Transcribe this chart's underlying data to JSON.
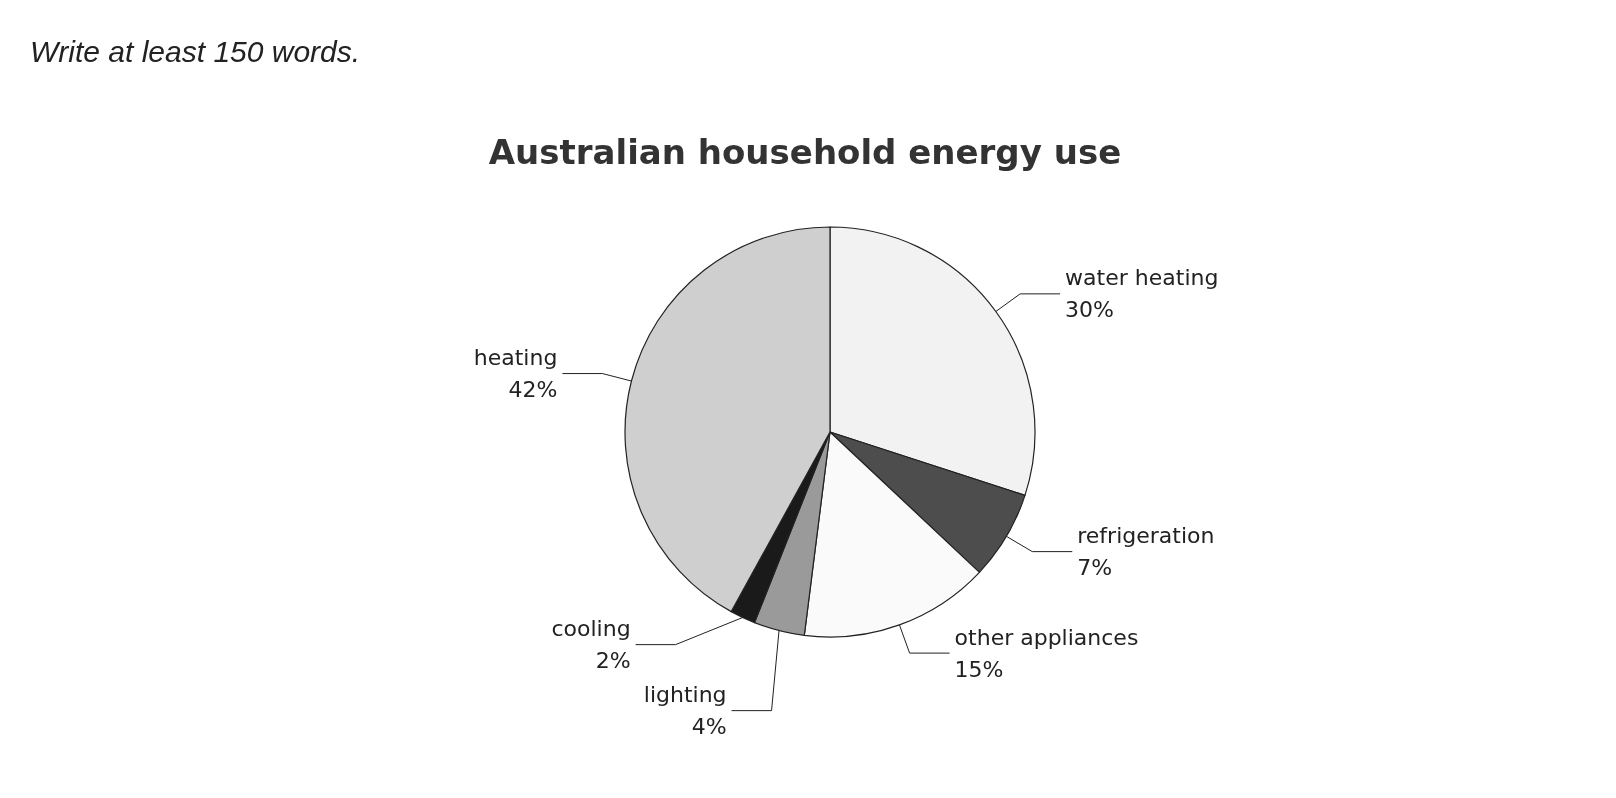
{
  "chart_data": {
    "type": "pie",
    "title": "Australian household energy use",
    "categories": [
      "water heating",
      "refrigeration",
      "other appliances",
      "lighting",
      "cooling",
      "heating"
    ],
    "values": [
      30,
      7,
      15,
      4,
      2,
      42
    ],
    "value_labels": [
      "30%",
      "7%",
      "15%",
      "4%",
      "2%",
      "42%"
    ],
    "colors": [
      "#f2f2f2",
      "#4d4d4d",
      "#fafafa",
      "#9a9a9a",
      "#1a1a1a",
      "#cfcfcf"
    ],
    "annotations": [
      "Write at least 150 words."
    ],
    "legend": false
  }
}
